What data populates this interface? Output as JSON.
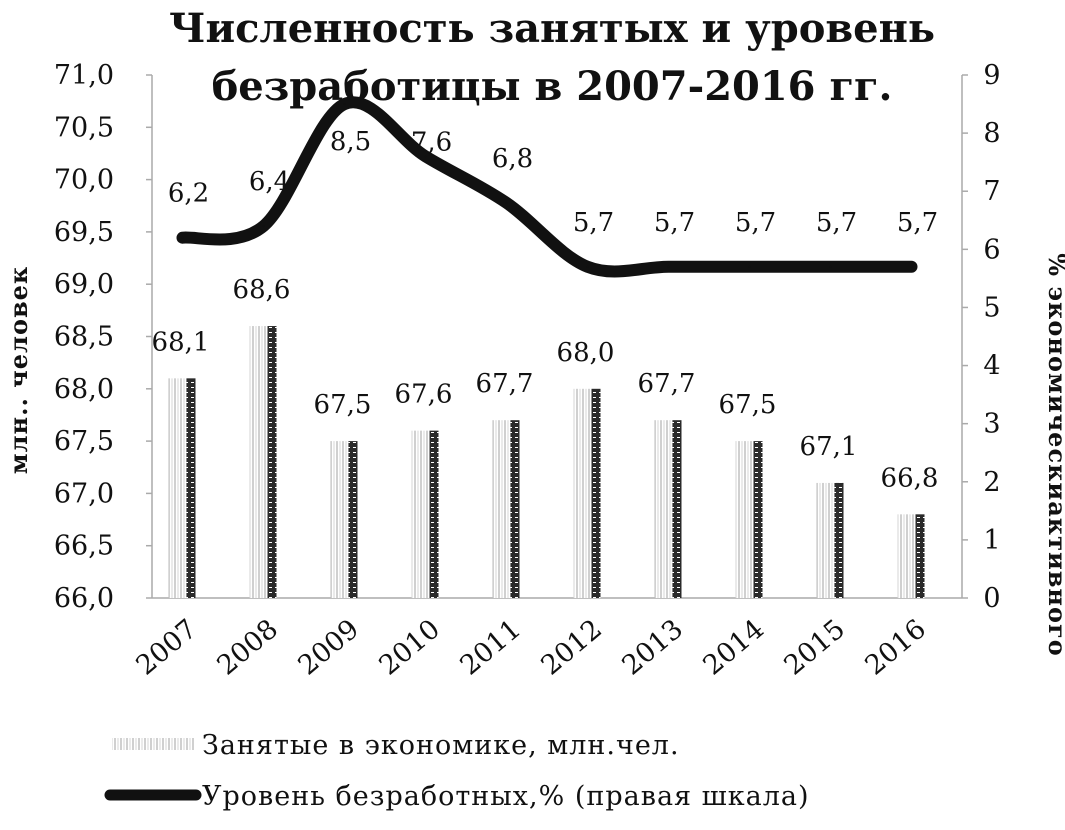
{
  "chart_data": {
    "type": "bar",
    "title_line1": "Численность занятых и уровень",
    "title_line2": "безработицы в 2007-2016 гг.",
    "categories": [
      "2007",
      "2008",
      "2009",
      "2010",
      "2011",
      "2012",
      "2013",
      "2014",
      "2015",
      "2016"
    ],
    "ylabel": "млн.. человек",
    "y2label": "% экономическиактивного",
    "ylim": [
      66.0,
      71.0
    ],
    "y2lim": [
      0,
      9
    ],
    "yticks": [
      "66,0",
      "66,5",
      "67,0",
      "67,5",
      "68,0",
      "68,5",
      "69,0",
      "69,5",
      "70,0",
      "70,5",
      "71,0"
    ],
    "y2ticks": [
      "0",
      "1",
      "2",
      "3",
      "4",
      "5",
      "6",
      "7",
      "8",
      "9"
    ],
    "series": [
      {
        "name": "Занятые в экономике, млн.чел.",
        "kind": "bar",
        "axis": "left",
        "values": [
          68.1,
          68.6,
          67.5,
          67.6,
          67.7,
          68.0,
          67.7,
          67.5,
          67.1,
          66.8
        ],
        "labels": [
          "68,1",
          "68,6",
          "67,5",
          "67,6",
          "67,7",
          "68,0",
          "67,7",
          "67,5",
          "67,1",
          "66,8"
        ]
      },
      {
        "name": "Уровень безработных,% (правая шкала)",
        "kind": "line",
        "axis": "right",
        "values": [
          6.2,
          6.4,
          8.5,
          7.6,
          6.8,
          5.7,
          5.7,
          5.7,
          5.7,
          5.7
        ],
        "labels": [
          "6,2",
          "6,4",
          "8,5",
          "7,6",
          "6,8",
          "5,7",
          "5,7",
          "5,7",
          "5,7",
          "5,7"
        ]
      }
    ],
    "legend_position": "bottom",
    "colors": {
      "bar_light": "#d9d9d9",
      "bar_dark": "#222222",
      "line": "#111111"
    }
  }
}
